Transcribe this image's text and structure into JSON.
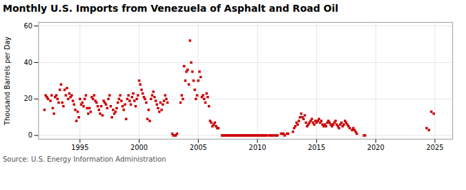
{
  "chart_data": {
    "type": "scatter",
    "title": "Monthly U.S. Imports from Venezuela of Asphalt and Road Oil",
    "ylabel": "Thousand Barrels per Day",
    "annotations": [
      "Source: U.S. Energy Information Administration"
    ],
    "color": "#cc0000",
    "marker": "square",
    "grid": true,
    "xlim": [
      1991.5,
      2026.5
    ],
    "ylim": [
      -2,
      62
    ],
    "xticks": [
      1995,
      2000,
      2005,
      2010,
      2015,
      2020,
      2025
    ],
    "yticks": [
      0,
      20,
      40,
      60
    ],
    "x": [
      1992.0,
      1992.1,
      1992.2,
      1992.3,
      1992.5,
      1992.6,
      1992.7,
      1992.8,
      1992.9,
      1993.0,
      1993.1,
      1993.2,
      1993.3,
      1993.4,
      1993.5,
      1993.6,
      1993.7,
      1993.8,
      1993.9,
      1994.0,
      1994.1,
      1994.2,
      1994.3,
      1994.4,
      1994.5,
      1994.6,
      1994.7,
      1994.8,
      1994.9,
      1995.0,
      1995.1,
      1995.2,
      1995.3,
      1995.4,
      1995.5,
      1995.6,
      1995.7,
      1995.8,
      1995.9,
      1996.0,
      1996.1,
      1996.2,
      1996.3,
      1996.4,
      1996.5,
      1996.6,
      1996.7,
      1996.8,
      1996.9,
      1997.0,
      1997.1,
      1997.2,
      1997.3,
      1997.4,
      1997.5,
      1997.6,
      1997.7,
      1997.8,
      1997.9,
      1998.0,
      1998.1,
      1998.2,
      1998.3,
      1998.4,
      1998.5,
      1998.6,
      1998.7,
      1998.8,
      1998.9,
      1999.0,
      1999.1,
      1999.2,
      1999.3,
      1999.4,
      1999.5,
      1999.6,
      1999.7,
      1999.8,
      1999.9,
      2000.0,
      2000.1,
      2000.2,
      2000.3,
      2000.4,
      2000.5,
      2000.6,
      2000.7,
      2000.8,
      2000.9,
      2001.0,
      2001.1,
      2001.2,
      2001.3,
      2001.4,
      2001.5,
      2001.6,
      2001.7,
      2001.8,
      2001.9,
      2002.0,
      2002.1,
      2002.2,
      2002.3,
      2002.4,
      2002.8,
      2002.9,
      2003.0,
      2003.1,
      2003.2,
      2003.5,
      2003.6,
      2003.7,
      2003.8,
      2003.9,
      2004.0,
      2004.1,
      2004.2,
      2004.3,
      2004.4,
      2004.5,
      2004.6,
      2004.7,
      2004.8,
      2004.9,
      2005.0,
      2005.1,
      2005.2,
      2005.3,
      2005.4,
      2005.5,
      2005.6,
      2005.7,
      2005.8,
      2005.9,
      2006.0,
      2006.1,
      2006.2,
      2006.3,
      2006.4,
      2006.5,
      2006.6,
      2006.7,
      2007.0,
      2007.1,
      2007.2,
      2007.3,
      2007.4,
      2007.5,
      2007.6,
      2007.7,
      2007.8,
      2007.9,
      2008.0,
      2008.1,
      2008.2,
      2008.3,
      2008.4,
      2008.5,
      2008.6,
      2008.7,
      2008.8,
      2008.9,
      2009.0,
      2009.1,
      2009.2,
      2009.3,
      2009.4,
      2009.5,
      2009.6,
      2009.7,
      2009.8,
      2009.9,
      2010.0,
      2010.1,
      2010.2,
      2010.3,
      2010.4,
      2010.5,
      2010.6,
      2010.7,
      2010.8,
      2011.0,
      2011.1,
      2011.2,
      2011.3,
      2011.5,
      2011.6,
      2011.7,
      2012.0,
      2012.1,
      2012.2,
      2012.3,
      2012.5,
      2012.6,
      2013.0,
      2013.1,
      2013.2,
      2013.3,
      2013.4,
      2013.5,
      2013.6,
      2013.7,
      2013.8,
      2013.9,
      2014.0,
      2014.1,
      2014.2,
      2014.3,
      2014.4,
      2014.5,
      2014.6,
      2014.7,
      2014.8,
      2014.9,
      2015.0,
      2015.1,
      2015.2,
      2015.3,
      2015.4,
      2015.5,
      2015.6,
      2015.7,
      2015.8,
      2015.9,
      2016.0,
      2016.1,
      2016.2,
      2016.3,
      2016.4,
      2016.5,
      2016.6,
      2016.7,
      2016.8,
      2016.9,
      2017.0,
      2017.1,
      2017.2,
      2017.3,
      2017.4,
      2017.5,
      2017.6,
      2017.7,
      2017.8,
      2018.0,
      2018.1,
      2018.2,
      2018.3,
      2018.4,
      2019.0,
      2019.1,
      2024.3,
      2024.5,
      2024.7,
      2024.9
    ],
    "values": [
      14,
      22,
      21,
      20,
      19,
      22,
      15,
      12,
      21,
      22,
      20,
      18,
      25,
      28,
      18,
      16,
      25,
      22,
      26,
      20,
      23,
      21,
      22,
      19,
      17,
      14,
      8,
      13,
      10,
      20,
      17,
      18,
      16,
      20,
      22,
      15,
      12,
      15,
      13,
      21,
      20,
      22,
      19,
      18,
      16,
      14,
      12,
      16,
      11,
      19,
      18,
      17,
      15,
      20,
      22,
      16,
      10,
      14,
      12,
      13,
      15,
      18,
      20,
      22,
      19,
      16,
      14,
      17,
      9,
      20,
      22,
      19,
      17,
      21,
      23,
      19,
      16,
      20,
      22,
      30,
      28,
      25,
      23,
      21,
      20,
      18,
      9,
      14,
      8,
      20,
      22,
      24,
      21,
      19,
      17,
      15,
      13,
      18,
      14,
      17,
      19,
      22,
      20,
      18,
      1,
      0,
      0,
      0,
      1,
      18,
      22,
      20,
      38,
      30,
      35,
      36,
      28,
      52,
      40,
      35,
      30,
      25,
      20,
      22,
      30,
      35,
      32,
      21,
      22,
      20,
      18,
      23,
      21,
      16,
      8,
      7,
      5,
      6,
      7,
      5,
      4,
      4,
      0,
      0,
      0,
      0,
      0,
      0,
      0,
      0,
      0,
      0,
      0,
      0,
      0,
      0,
      0,
      0,
      0,
      0,
      0,
      0,
      0,
      0,
      0,
      0,
      0,
      0,
      0,
      0,
      0,
      0,
      0,
      0,
      0,
      0,
      0,
      0,
      0,
      0,
      0,
      0,
      0,
      0,
      0,
      0,
      0,
      0,
      1,
      1,
      1,
      0,
      1,
      1,
      2,
      4,
      5,
      7,
      6,
      8,
      10,
      12,
      10,
      9,
      11,
      7,
      5,
      6,
      7,
      8,
      9,
      7,
      6,
      8,
      7,
      8,
      9,
      7,
      8,
      6,
      5,
      6,
      5,
      7,
      8,
      7,
      6,
      5,
      6,
      7,
      8,
      6,
      5,
      4,
      6,
      7,
      5,
      6,
      8,
      7,
      6,
      5,
      4,
      3,
      4,
      3,
      2,
      1,
      0,
      0,
      4,
      3,
      13,
      12
    ]
  }
}
